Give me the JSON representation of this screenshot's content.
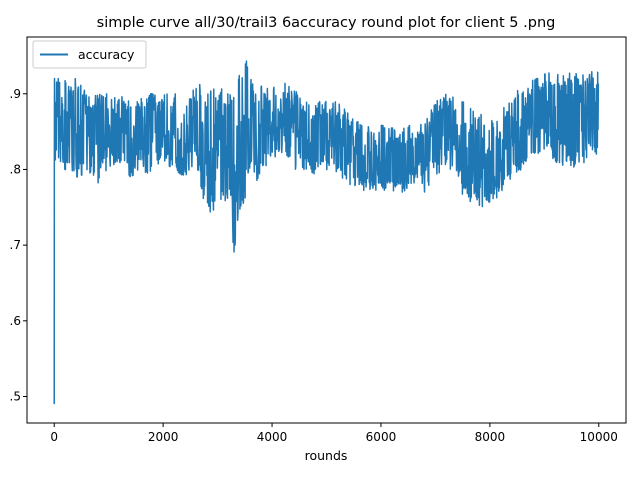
{
  "chart_data": {
    "type": "line",
    "title": "simple curve all/30/trail3 6accuracy round plot for client 5 .png",
    "xlabel": "rounds",
    "ylabel": "",
    "xlim": [
      -500,
      10500
    ],
    "ylim": [
      0.465,
      0.975
    ],
    "xticks": [
      0,
      2000,
      4000,
      6000,
      8000,
      10000
    ],
    "xtick_labels": [
      "0",
      "2000",
      "4000",
      "6000",
      "8000",
      "10000"
    ],
    "yticks": [
      0.5,
      0.6,
      0.7,
      0.8,
      0.9
    ],
    "ytick_labels": [
      ".5",
      ".6",
      ".7",
      ".8",
      ".9"
    ],
    "grid": false,
    "legend_position": "top-left",
    "series": [
      {
        "name": "accuracy",
        "color": "#1f77b4",
        "x": [
          0,
          2,
          5,
          10,
          20,
          50,
          100,
          200,
          300,
          400,
          500,
          600,
          700,
          800,
          900,
          1000,
          1100,
          1200,
          1300,
          1400,
          1500,
          1600,
          1700,
          1800,
          1900,
          2000,
          2100,
          2200,
          2300,
          2400,
          2500,
          2600,
          2700,
          2800,
          2900,
          3000,
          3100,
          3200,
          3300,
          3400,
          3500,
          3600,
          3700,
          3800,
          3900,
          4000,
          4200,
          4400,
          4600,
          4800,
          5000,
          5200,
          5400,
          5600,
          5800,
          6000,
          6200,
          6400,
          6600,
          6800,
          7000,
          7200,
          7400,
          7600,
          7800,
          8000,
          8200,
          8400,
          8600,
          8800,
          9000,
          9200,
          9400,
          9600,
          9800,
          10000
        ],
        "y": [
          0.49,
          0.81,
          0.92,
          0.86,
          0.83,
          0.9,
          0.88,
          0.83,
          0.87,
          0.8,
          0.84,
          0.88,
          0.82,
          0.87,
          0.81,
          0.86,
          0.85,
          0.83,
          0.87,
          0.79,
          0.86,
          0.85,
          0.81,
          0.88,
          0.84,
          0.86,
          0.82,
          0.88,
          0.81,
          0.86,
          0.83,
          0.87,
          0.8,
          0.84,
          0.76,
          0.86,
          0.83,
          0.85,
          0.72,
          0.88,
          0.82,
          0.86,
          0.84,
          0.88,
          0.85,
          0.87,
          0.86,
          0.87,
          0.85,
          0.83,
          0.85,
          0.84,
          0.83,
          0.82,
          0.81,
          0.8,
          0.82,
          0.8,
          0.81,
          0.83,
          0.85,
          0.86,
          0.84,
          0.81,
          0.8,
          0.8,
          0.81,
          0.83,
          0.85,
          0.86,
          0.87,
          0.87,
          0.86,
          0.87,
          0.88,
          0.87
        ],
        "band": {
          "x": [
            0,
            200,
            400,
            600,
            800,
            1000,
            1200,
            1400,
            1600,
            1800,
            2000,
            2200,
            2400,
            2600,
            2800,
            3000,
            3200,
            3300,
            3400,
            3500,
            3600,
            3700,
            3800,
            4000,
            4200,
            4400,
            4600,
            4800,
            5000,
            5200,
            5400,
            5600,
            5800,
            6000,
            6200,
            6400,
            6600,
            6800,
            7000,
            7200,
            7400,
            7600,
            7800,
            8000,
            8200,
            8400,
            8600,
            8800,
            9000,
            9200,
            9400,
            9600,
            9800,
            10000
          ],
          "low": [
            0.81,
            0.8,
            0.79,
            0.79,
            0.78,
            0.8,
            0.81,
            0.79,
            0.8,
            0.79,
            0.81,
            0.8,
            0.79,
            0.81,
            0.74,
            0.75,
            0.76,
            0.69,
            0.74,
            0.76,
            0.8,
            0.78,
            0.8,
            0.81,
            0.82,
            0.8,
            0.8,
            0.79,
            0.8,
            0.79,
            0.78,
            0.77,
            0.77,
            0.77,
            0.77,
            0.77,
            0.78,
            0.77,
            0.79,
            0.8,
            0.78,
            0.75,
            0.75,
            0.75,
            0.77,
            0.79,
            0.8,
            0.81,
            0.82,
            0.81,
            0.8,
            0.8,
            0.81,
            0.82
          ],
          "high": [
            0.92,
            0.92,
            0.92,
            0.9,
            0.9,
            0.9,
            0.9,
            0.89,
            0.9,
            0.9,
            0.9,
            0.9,
            0.9,
            0.91,
            0.92,
            0.91,
            0.9,
            0.91,
            0.93,
            0.95,
            0.93,
            0.91,
            0.91,
            0.91,
            0.92,
            0.91,
            0.89,
            0.89,
            0.89,
            0.89,
            0.88,
            0.87,
            0.86,
            0.86,
            0.86,
            0.86,
            0.86,
            0.86,
            0.89,
            0.9,
            0.9,
            0.89,
            0.88,
            0.87,
            0.88,
            0.9,
            0.91,
            0.92,
            0.93,
            0.93,
            0.93,
            0.93,
            0.93,
            0.93
          ]
        }
      }
    ]
  }
}
